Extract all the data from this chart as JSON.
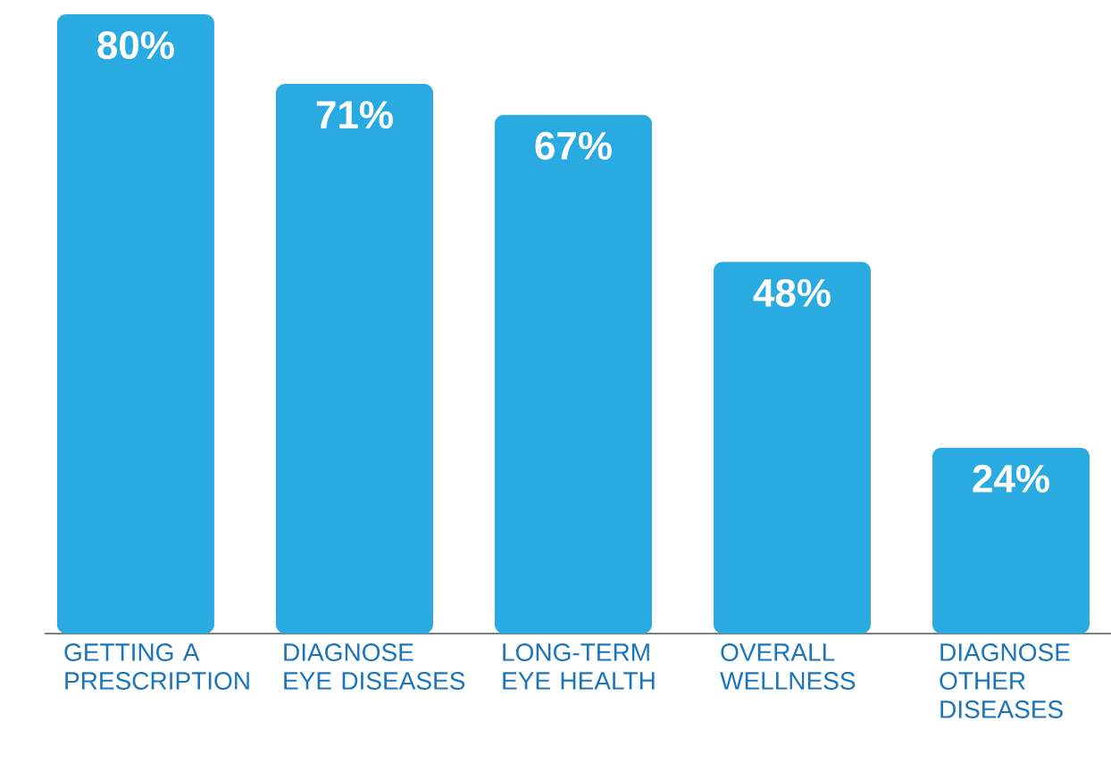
{
  "chart_data": {
    "type": "bar",
    "categories": [
      "GETTING A PRESCRIPTION",
      "DIAGNOSE EYE DISEASES",
      "LONG-TERM EYE HEALTH",
      "OVERALL WELLNESS",
      "DIAGNOSE OTHER DISEASES"
    ],
    "values": [
      80,
      71,
      67,
      48,
      24
    ],
    "value_labels": [
      "80%",
      "71%",
      "67%",
      "48%",
      "24%"
    ],
    "color": "#29abe2"
  }
}
